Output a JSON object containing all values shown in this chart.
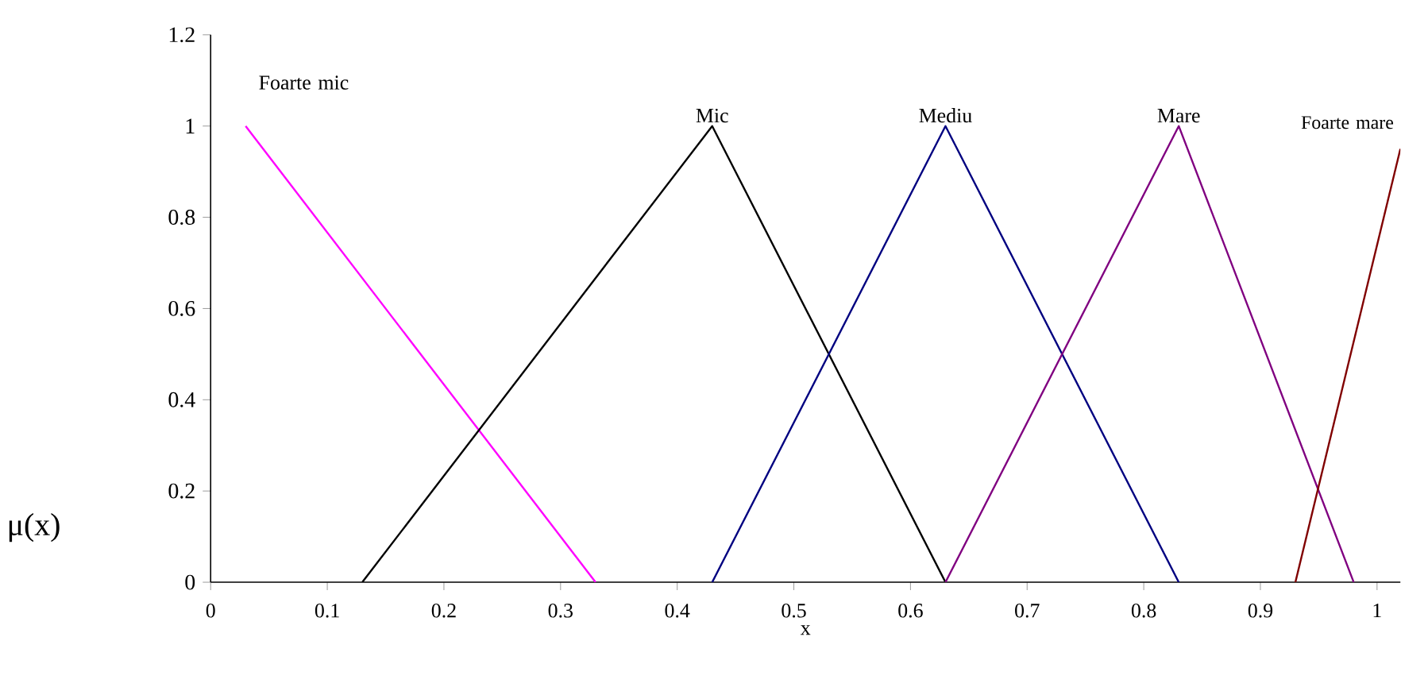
{
  "chart_data": {
    "type": "line",
    "xlabel": "x",
    "ylabel": "μ(x)",
    "xlim": [
      0,
      1.02
    ],
    "ylim": [
      0,
      1.2
    ],
    "xticks": [
      0,
      0.1,
      0.2,
      0.3,
      0.4,
      0.5,
      0.6,
      0.7,
      0.8,
      0.9,
      1
    ],
    "yticks": [
      0,
      0.2,
      0.4,
      0.6,
      0.8,
      1,
      1.2
    ],
    "marker": "none",
    "line_style": "solid",
    "grid": false,
    "series": [
      {
        "name": "Foarte mic",
        "color": "#ff00ff",
        "x": [
          0.03,
          0.33
        ],
        "values": [
          1,
          0
        ]
      },
      {
        "name": "Mic",
        "color": "#000000",
        "x": [
          0.13,
          0.43,
          0.63
        ],
        "values": [
          0,
          1,
          0
        ]
      },
      {
        "name": "Mediu",
        "color": "#000080",
        "x": [
          0.43,
          0.63,
          0.83
        ],
        "values": [
          0,
          1,
          0
        ]
      },
      {
        "name": "Mare",
        "color": "#800080",
        "x": [
          0.63,
          0.83,
          0.98
        ],
        "values": [
          0,
          1,
          0
        ]
      },
      {
        "name": "Foarte mare",
        "color": "#800000",
        "x": [
          0.93,
          1.02
        ],
        "values": [
          0,
          0.95
        ]
      }
    ]
  }
}
